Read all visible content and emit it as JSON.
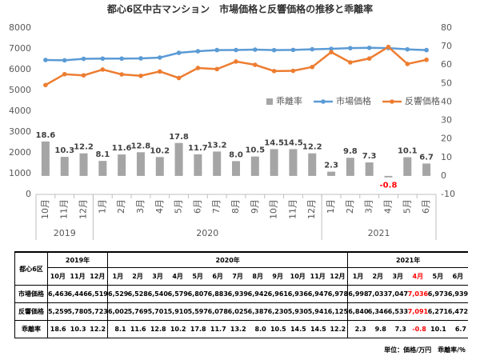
{
  "chart_data": {
    "type": "combo",
    "title": "都心6区中古マンション　市場価格と反響価格の推移と乖離率",
    "groups": [
      {
        "label": "2019",
        "categories": [
          "10月",
          "11月",
          "12月"
        ]
      },
      {
        "label": "2020",
        "categories": [
          "1月",
          "2月",
          "3月",
          "4月",
          "5月",
          "6月",
          "7月",
          "8月",
          "9月",
          "10月",
          "11月",
          "12月"
        ]
      },
      {
        "label": "2021",
        "categories": [
          "1月",
          "2月",
          "3月",
          "4月",
          "5月",
          "6月"
        ]
      }
    ],
    "series": [
      {
        "name": "乖離率",
        "type": "bar",
        "axis": "y2",
        "color": "#a5a5a5",
        "negative_label_color": "#ff0000",
        "values": [
          18.6,
          10.3,
          12.2,
          8.1,
          11.6,
          12.8,
          10.2,
          17.8,
          11.7,
          13.2,
          8,
          10.5,
          14.5,
          14.5,
          12.2,
          2.3,
          9.8,
          7.3,
          -0.8,
          10.1,
          6.7
        ],
        "value_labels": [
          "18.6",
          "10.3",
          "12.2",
          "8.1",
          "11.6",
          "12.8",
          "10.2",
          "17.8",
          "11.7",
          "13.2",
          "8.0",
          "10.5",
          "14.5",
          "14.5",
          "12.2",
          "2.3",
          "9.8",
          "7.3",
          "-0.8",
          "10.1",
          "6.7"
        ]
      },
      {
        "name": "市場価格",
        "type": "line",
        "axis": "y",
        "color": "#5b9bd5",
        "values": [
          6463,
          6446,
          6519,
          6529,
          6528,
          6540,
          6579,
          6807,
          6883,
          6939,
          6942,
          6961,
          6936,
          6947,
          6978,
          6998,
          7033,
          7047,
          7036,
          6973,
          6939
        ]
      },
      {
        "name": "反響価格",
        "type": "line",
        "axis": "y",
        "color": "#ed7d31",
        "values": [
          5259,
          5780,
          5723,
          6002,
          5769,
          5701,
          5910,
          5597,
          6078,
          6025,
          6387,
          6230,
          5930,
          5941,
          6125,
          6840,
          6346,
          6533,
          7091,
          6271,
          6472
        ]
      }
    ],
    "ylim": [
      0,
      8000
    ],
    "yticks": [
      0,
      1000,
      2000,
      3000,
      4000,
      5000,
      6000,
      7000,
      8000
    ],
    "y2lim": [
      -10,
      80
    ],
    "y2ticks": [
      -10,
      0,
      10,
      20,
      30,
      40,
      50,
      60,
      70,
      80
    ],
    "grid": false,
    "legend": "center-right"
  },
  "table": {
    "corner": "都心6区",
    "years": [
      {
        "label": "2019年",
        "months": [
          "10月",
          "11月",
          "12月"
        ]
      },
      {
        "label": "2020年",
        "months": [
          "1月",
          "2月",
          "3月",
          "4月",
          "5月",
          "6月",
          "7月",
          "8月",
          "9月",
          "10月",
          "11月",
          "12月"
        ]
      },
      {
        "label": "2021年",
        "months": [
          "1月",
          "2月",
          "3月",
          {
            "label": "4月",
            "color": "#ff0000"
          },
          "5月",
          "6月"
        ]
      }
    ],
    "rows": [
      {
        "label": "市場価格",
        "cells": [
          "6,463",
          "6,446",
          "6,519",
          "6,529",
          "6,528",
          "6,540",
          "6,579",
          "6,807",
          "6,883",
          "6,939",
          "6,942",
          "6,961",
          "6,936",
          "6,947",
          "6,978",
          "6,998",
          "7,033",
          "7,047",
          "7,036",
          "6,973",
          "6,939"
        ]
      },
      {
        "label": "反響価格",
        "cells": [
          "5,259",
          "5,780",
          "5,723",
          "6,002",
          "5,769",
          "5,701",
          "5,910",
          "5,597",
          "6,078",
          "6,025",
          "6,387",
          "6,230",
          "5,930",
          "5,941",
          "6,125",
          "6,840",
          "6,346",
          "6,533",
          "7,091",
          "6,271",
          "6,472"
        ]
      },
      {
        "label": "乖離率",
        "cells": [
          "18.6",
          "10.3",
          "12.2",
          "8.1",
          "11.6",
          "12.8",
          "10.2",
          "17.8",
          "11.7",
          "13.2",
          "8.0",
          "10.5",
          "14.5",
          "14.5",
          "12.2",
          "2.3",
          "9.8",
          "7.3",
          "-0.8",
          "10.1",
          "6.7"
        ]
      }
    ],
    "note": "単位：価格/万円　乖離率/％"
  }
}
